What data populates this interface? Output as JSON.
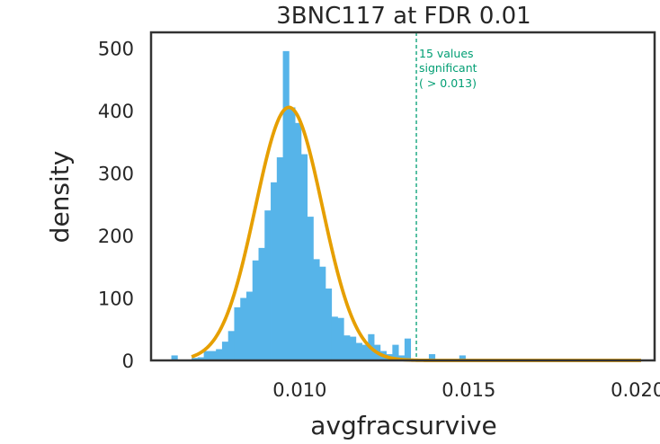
{
  "chart_data": {
    "type": "bar",
    "title": "3BNC117 at FDR 0.01",
    "xlabel": "avgfracsurvive",
    "ylabel": "density",
    "xlim": [
      0.0056,
      0.0205
    ],
    "ylim": [
      0,
      525
    ],
    "xticks": [
      0.01,
      0.015,
      0.02
    ],
    "xtick_labels": [
      "0.010",
      "0.015",
      "0.020"
    ],
    "yticks": [
      0,
      100,
      200,
      300,
      400,
      500
    ],
    "ytick_labels": [
      "0",
      "100",
      "200",
      "300",
      "400",
      "500"
    ],
    "grid": false,
    "colors": {
      "bars": "#56b4e9",
      "fit": "#e69f00",
      "threshold": "#009e73",
      "frame": "#333333"
    },
    "histogram": {
      "bin_width": 0.00018,
      "bins": [
        {
          "x": 0.0062,
          "y": 8
        },
        {
          "x": 0.0068,
          "y": 4
        },
        {
          "x": 0.00698,
          "y": 5
        },
        {
          "x": 0.00716,
          "y": 15
        },
        {
          "x": 0.00734,
          "y": 15
        },
        {
          "x": 0.00752,
          "y": 18
        },
        {
          "x": 0.0077,
          "y": 30
        },
        {
          "x": 0.00788,
          "y": 47
        },
        {
          "x": 0.00806,
          "y": 85
        },
        {
          "x": 0.00824,
          "y": 100
        },
        {
          "x": 0.00842,
          "y": 110
        },
        {
          "x": 0.0086,
          "y": 160
        },
        {
          "x": 0.00878,
          "y": 180
        },
        {
          "x": 0.00896,
          "y": 240
        },
        {
          "x": 0.00914,
          "y": 285
        },
        {
          "x": 0.00932,
          "y": 325
        },
        {
          "x": 0.0095,
          "y": 495
        },
        {
          "x": 0.00968,
          "y": 405
        },
        {
          "x": 0.00986,
          "y": 380
        },
        {
          "x": 0.01004,
          "y": 330
        },
        {
          "x": 0.01022,
          "y": 230
        },
        {
          "x": 0.0104,
          "y": 162
        },
        {
          "x": 0.01058,
          "y": 150
        },
        {
          "x": 0.01076,
          "y": 115
        },
        {
          "x": 0.01094,
          "y": 70
        },
        {
          "x": 0.01112,
          "y": 68
        },
        {
          "x": 0.0113,
          "y": 40
        },
        {
          "x": 0.01148,
          "y": 38
        },
        {
          "x": 0.01166,
          "y": 28
        },
        {
          "x": 0.01184,
          "y": 25
        },
        {
          "x": 0.01202,
          "y": 42
        },
        {
          "x": 0.0122,
          "y": 25
        },
        {
          "x": 0.01238,
          "y": 15
        },
        {
          "x": 0.01256,
          "y": 10
        },
        {
          "x": 0.01274,
          "y": 25
        },
        {
          "x": 0.01292,
          "y": 8
        },
        {
          "x": 0.0131,
          "y": 35
        },
        {
          "x": 0.01382,
          "y": 10
        },
        {
          "x": 0.01472,
          "y": 8
        }
      ]
    },
    "fit_curve": {
      "type": "gaussian",
      "mean": 0.00968,
      "sd": 0.00099,
      "peak": 405,
      "x_range": [
        0.0068,
        0.0201
      ]
    },
    "threshold_line": {
      "x": 0.01345
    },
    "annotation": [
      "15 values",
      "significant",
      "( > 0.013)"
    ]
  }
}
